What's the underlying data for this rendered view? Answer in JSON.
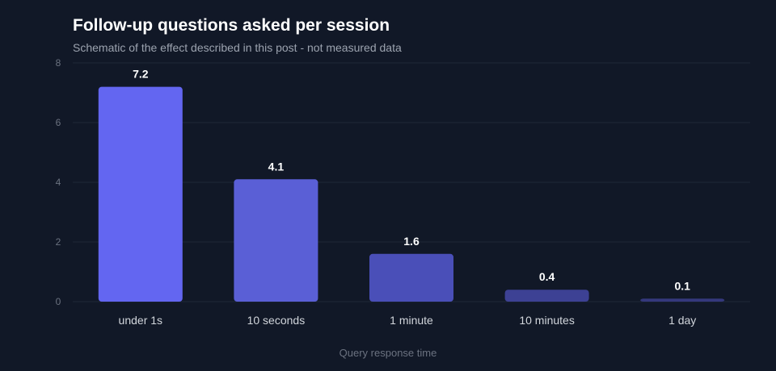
{
  "chart_data": {
    "type": "bar",
    "title": "Follow-up questions asked per session",
    "subtitle": "Schematic of the effect described in this post - not measured data",
    "xlabel": "Query response time",
    "ylabel": "",
    "categories": [
      "under 1s",
      "10 seconds",
      "1 minute",
      "10 minutes",
      "1 day"
    ],
    "values": [
      7.2,
      4.1,
      1.6,
      0.4,
      0.1
    ],
    "value_labels": [
      "7.2",
      "4.1",
      "1.6",
      "0.4",
      "0.1"
    ],
    "ylim": [
      0,
      8
    ],
    "yticks": [
      0,
      2,
      4,
      6,
      8
    ],
    "grid": true,
    "legend": "none",
    "colors": {
      "background": "#111827",
      "bars": [
        "#6366f1",
        "#5a5fd6",
        "#4a4fb8",
        "#3d4194",
        "#34387c"
      ],
      "grid": "#1f2937",
      "tick_text": "#6b7280",
      "category_text": "#d1d5db",
      "value_label_text": "#ffffff",
      "axis_title_text": "#6b7280"
    }
  }
}
